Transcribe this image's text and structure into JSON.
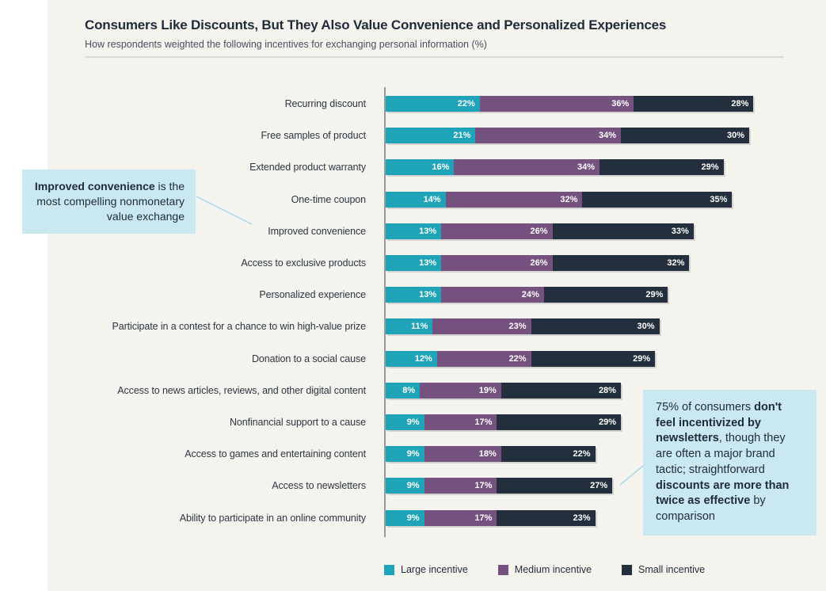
{
  "header": {
    "title": "Consumers Like Discounts, But They Also Value Convenience and Personalized Experiences",
    "subtitle": "How respondents weighted the following incentives for exchanging personal information (%)"
  },
  "chart_data": {
    "type": "bar",
    "stacked": true,
    "orientation": "horizontal",
    "title": "Consumers Like Discounts, But They Also Value Convenience and Personalized Experiences",
    "subtitle": "How respondents weighted the following incentives for exchanging personal information (%)",
    "value_suffix": "%",
    "xlim": [
      0,
      90
    ],
    "grid": false,
    "legend_position": "bottom",
    "categories": [
      "Recurring discount",
      "Free samples of product",
      "Extended product warranty",
      "One-time coupon",
      "Improved convenience",
      "Access to exclusive products",
      "Personalized experience",
      "Participate in a contest for a chance to win high-value prize",
      "Donation to a social cause",
      "Access to news articles, reviews, and other digital content",
      "Nonfinancial support to a cause",
      "Access to games and entertaining content",
      "Access to newsletters",
      "Ability to participate in an online community"
    ],
    "series": [
      {
        "name": "Large incentive",
        "color": "#1fa3b8",
        "values": [
          22,
          21,
          16,
          14,
          13,
          13,
          13,
          11,
          12,
          8,
          9,
          9,
          9,
          9
        ]
      },
      {
        "name": "Medium incentive",
        "color": "#75517f",
        "values": [
          36,
          34,
          34,
          32,
          26,
          26,
          24,
          23,
          22,
          19,
          17,
          18,
          17,
          17
        ]
      },
      {
        "name": "Small incentive",
        "color": "#232f3d",
        "values": [
          28,
          30,
          29,
          35,
          33,
          32,
          29,
          30,
          29,
          28,
          29,
          22,
          27,
          23
        ]
      }
    ]
  },
  "annotations": {
    "left_callout": {
      "background": "#c9e8f0",
      "segments": [
        {
          "text": "Improved convenience",
          "bold": true
        },
        {
          "text": " is the most compelling nonmonetary value exchange",
          "bold": false
        }
      ]
    },
    "right_callout": {
      "background": "#c9e8f0",
      "segments": [
        {
          "text": "75% of consumers ",
          "bold": false
        },
        {
          "text": "don't feel incentivized by newsletters",
          "bold": true
        },
        {
          "text": ", though they are often a major brand tactic; straightforward ",
          "bold": false
        },
        {
          "text": "discounts are more than twice as effective",
          "bold": true
        },
        {
          "text": " by comparison",
          "bold": false
        }
      ]
    },
    "connector_color": "#a8d7e6"
  }
}
